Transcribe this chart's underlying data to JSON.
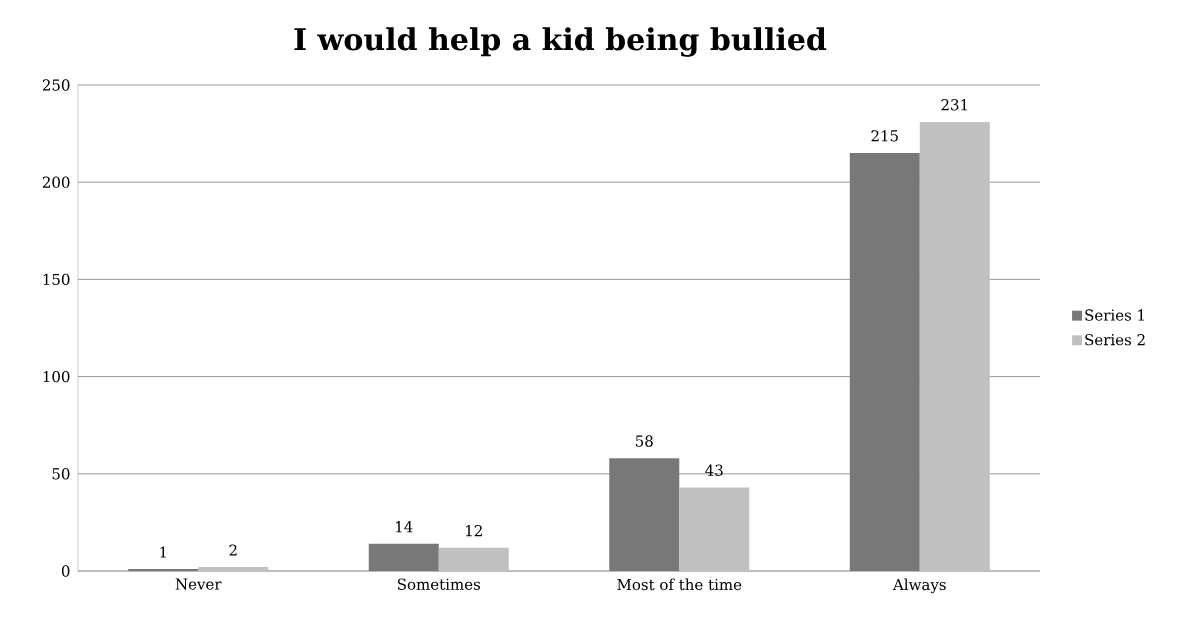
{
  "chart_data": {
    "type": "bar",
    "title": "I would help a kid being bullied",
    "categories": [
      "Never",
      "Sometimes",
      "Most of the time",
      "Always"
    ],
    "series": [
      {
        "name": "Series 1",
        "color": "#787878",
        "values": [
          1,
          14,
          58,
          215
        ]
      },
      {
        "name": "Series 2",
        "color": "#c0c0c0",
        "values": [
          2,
          12,
          43,
          231
        ]
      }
    ],
    "ylim": [
      0,
      250
    ],
    "yticks": [
      0,
      50,
      100,
      150,
      200,
      250
    ],
    "grid": "y",
    "legend": "right",
    "data_labels": true
  }
}
